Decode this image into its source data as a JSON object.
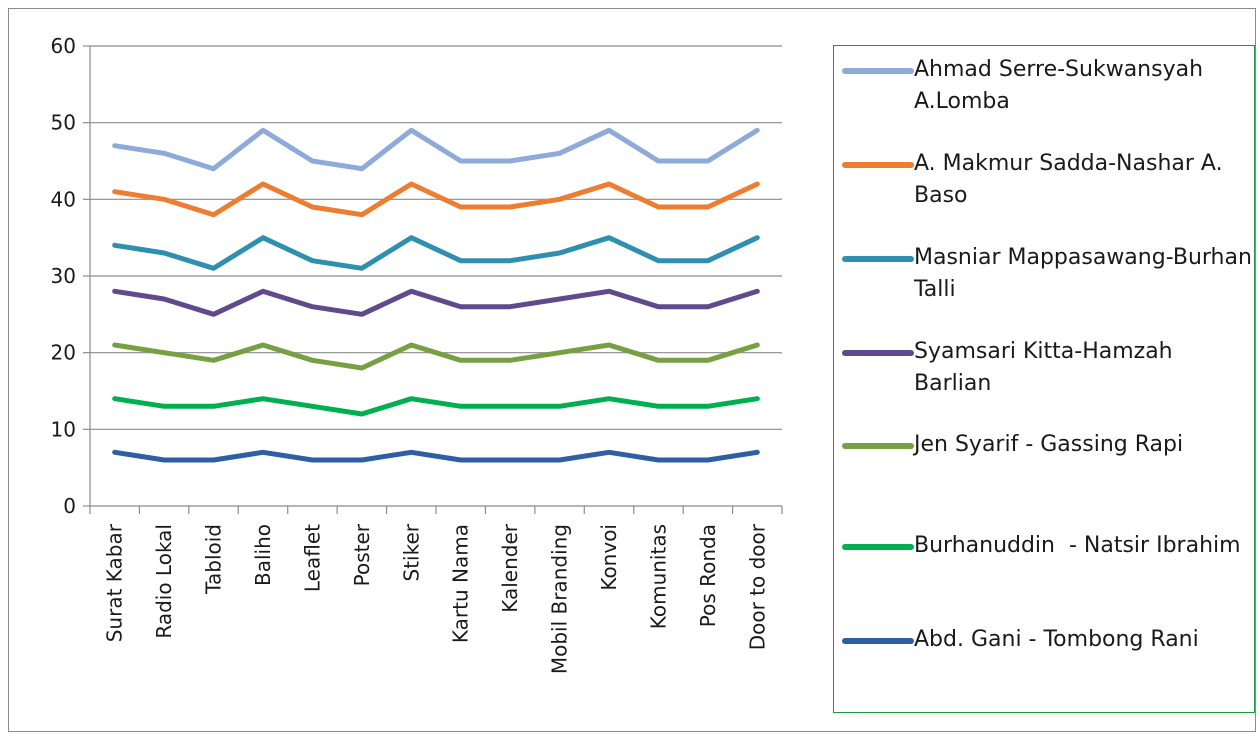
{
  "chart_data": {
    "type": "line",
    "categories": [
      "Surat Kabar",
      "Radio Lokal",
      "Tabloid",
      "Baliho",
      "Leaflet",
      "Poster",
      "Stiker",
      "Kartu Nama",
      "Kalender",
      "Mobil Branding",
      "Konvoi",
      "Komunitas",
      "Pos Ronda",
      "Door to door"
    ],
    "ylim": [
      0,
      60
    ],
    "yticks": [
      0,
      10,
      20,
      30,
      40,
      50,
      60
    ],
    "grid": true,
    "legend_position": "right",
    "series": [
      {
        "name": "Ahmad Serre-Sukwansyah A.Lomba",
        "color": "#8eaadb",
        "values": [
          47,
          46,
          44,
          49,
          45,
          44,
          49,
          45,
          45,
          46,
          49,
          45,
          45,
          49
        ]
      },
      {
        "name": "A. Makmur Sadda-Nashar A. Baso",
        "color": "#ed7d31",
        "values": [
          41,
          40,
          38,
          42,
          39,
          38,
          42,
          39,
          39,
          40,
          42,
          39,
          39,
          42
        ]
      },
      {
        "name": "Masniar Mappasawang-Burhan Talli",
        "color": "#2e8fae",
        "values": [
          34,
          33,
          31,
          35,
          32,
          31,
          35,
          32,
          32,
          33,
          35,
          32,
          32,
          35
        ]
      },
      {
        "name": "Syamsari Kitta-Hamzah Barlian",
        "color": "#604a8c",
        "values": [
          28,
          27,
          25,
          28,
          26,
          25,
          28,
          26,
          26,
          27,
          28,
          26,
          26,
          28
        ]
      },
      {
        "name": "Jen Syarif - Gassing Rapi",
        "color": "#77a043",
        "values": [
          21,
          20,
          19,
          21,
          19,
          18,
          21,
          19,
          19,
          20,
          21,
          19,
          19,
          21
        ]
      },
      {
        "name": "Burhanuddin  - Natsir Ibrahim",
        "color": "#00b050",
        "values": [
          14,
          13,
          13,
          14,
          13,
          12,
          14,
          13,
          13,
          13,
          14,
          13,
          13,
          14
        ]
      },
      {
        "name": "Abd. Gani - Tombong Rani",
        "color": "#2e5fa3",
        "values": [
          7,
          6,
          6,
          7,
          6,
          6,
          7,
          6,
          6,
          6,
          7,
          6,
          6,
          7
        ]
      }
    ]
  }
}
